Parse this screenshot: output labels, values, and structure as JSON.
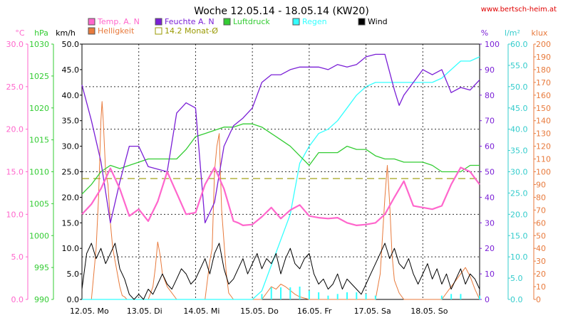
{
  "chart_data": {
    "type": "line",
    "title": "Woche 12.05.14 - 18.05.14 (KW20)",
    "source": "www.bertsch-heim.at",
    "x_labels": [
      "12.05.  Mo",
      "13.05.  Di",
      "14.05.  Mi",
      "15.05.  Do",
      "16.05.  Fr",
      "17.05.  Sa",
      "18.05.  So"
    ],
    "x_range_hours": [
      0,
      168
    ],
    "left_axes": [
      {
        "unit": "°C",
        "color": "#ff66cc",
        "ticks": [
          "30.0",
          "25.0",
          "20.0",
          "15.0",
          "10.0",
          "5.0",
          "0.0"
        ],
        "range": [
          0,
          30
        ]
      },
      {
        "unit": "hPa",
        "color": "#33cc33",
        "ticks": [
          "1030",
          "1025",
          "1020",
          "1015",
          "1010",
          "1005",
          "1000",
          "995",
          "990"
        ],
        "range": [
          990,
          1030
        ]
      },
      {
        "unit": "km/h",
        "color": "#000000",
        "ticks": [
          "50.0",
          "45.0",
          "40.0",
          "35.0",
          "30.0",
          "25.0",
          "20.0",
          "15.0",
          "10.0",
          "5.0",
          "0.0"
        ],
        "range": [
          0,
          50
        ]
      }
    ],
    "right_axes": [
      {
        "unit": "%",
        "color": "#7a1fd6",
        "ticks": [
          "100",
          "90",
          "80",
          "70",
          "60",
          "50",
          "40",
          "30",
          "20",
          "10",
          "0"
        ],
        "range": [
          0,
          100
        ]
      },
      {
        "unit": "l/m²",
        "color": "#33cccc",
        "ticks": [
          "60.0",
          "55.0",
          "50.0",
          "45.0",
          "40.0",
          "35.0",
          "30.0",
          "25.0",
          "20.0",
          "15.0",
          "10.0",
          "5.0",
          "0.0"
        ],
        "range": [
          0,
          60
        ]
      },
      {
        "unit": "klux",
        "color": "#e87a3c",
        "ticks": [
          "200",
          "190",
          "180",
          "170",
          "160",
          "150",
          "140",
          "130",
          "120",
          "110",
          "100",
          "90",
          "80",
          "70",
          "60",
          "50",
          "40",
          "30",
          "20",
          "10",
          "0"
        ],
        "range": [
          0,
          200
        ]
      }
    ],
    "legend": [
      {
        "label": "Temp. A. N",
        "color": "#ff66cc"
      },
      {
        "label": "Feuchte A. N",
        "color": "#7a1fd6"
      },
      {
        "label": "Luftdruck",
        "color": "#33cc33"
      },
      {
        "label": "Regen",
        "color": "#33ffff"
      },
      {
        "label": "Wind",
        "color": "#000000"
      },
      {
        "label": "Helligkeit",
        "color": "#e87a3c"
      },
      {
        "label": "14.2 Monat-Ø",
        "color": "#999900"
      }
    ],
    "reference_line": {
      "label": "14.2 Monat-Ø",
      "value": 14.2,
      "unit": "°C"
    },
    "series": [
      {
        "name": "Temp. A. N",
        "color": "#ff66cc",
        "axis": "°C",
        "hours": [
          0,
          4,
          8,
          12,
          16,
          20,
          24,
          28,
          32,
          36,
          40,
          44,
          48,
          52,
          56,
          60,
          64,
          66,
          68,
          72,
          76,
          80,
          84,
          88,
          92,
          96,
          100,
          104,
          108,
          112,
          116,
          120,
          124,
          128,
          132,
          136,
          140,
          144,
          148,
          152,
          156,
          160,
          164,
          168
        ],
        "values": [
          10.0,
          11.2,
          13.0,
          15.4,
          13.0,
          9.8,
          10.6,
          9.2,
          11.5,
          15.0,
          12.5,
          10.0,
          10.2,
          13.5,
          15.5,
          13.0,
          9.2,
          9.0,
          8.7,
          8.8,
          9.7,
          10.8,
          9.5,
          10.5,
          11.1,
          9.8,
          9.6,
          9.5,
          9.6,
          9.0,
          8.7,
          8.8,
          9.0,
          10.0,
          12.0,
          13.9,
          11.0,
          10.8,
          10.6,
          11.0,
          13.5,
          15.5,
          15.0,
          13.5
        ]
      },
      {
        "name": "Feuchte A. N",
        "color": "#7a1fd6",
        "axis": "%",
        "hours": [
          0,
          4,
          8,
          12,
          16,
          20,
          24,
          28,
          32,
          36,
          40,
          44,
          48,
          52,
          56,
          60,
          64,
          68,
          72,
          76,
          80,
          84,
          88,
          92,
          96,
          100,
          104,
          108,
          112,
          116,
          120,
          124,
          128,
          132,
          134,
          136,
          140,
          144,
          148,
          152,
          156,
          160,
          164,
          168
        ],
        "values": [
          84,
          70,
          54,
          30,
          46,
          60,
          60,
          52,
          51,
          50,
          73,
          77,
          75,
          30,
          38,
          60,
          68,
          71,
          75,
          85,
          88,
          88,
          90,
          91,
          91,
          91,
          90,
          92,
          91,
          92,
          95,
          96,
          96,
          82,
          76,
          80,
          85,
          90,
          88,
          90,
          81,
          83,
          82,
          86
        ]
      },
      {
        "name": "Luftdruck",
        "color": "#33cc33",
        "axis": "hPa",
        "hours": [
          0,
          4,
          8,
          12,
          16,
          20,
          24,
          28,
          32,
          36,
          40,
          44,
          48,
          52,
          56,
          60,
          64,
          68,
          72,
          76,
          80,
          84,
          88,
          92,
          96,
          100,
          104,
          108,
          112,
          116,
          120,
          124,
          128,
          132,
          136,
          140,
          144,
          148,
          152,
          156,
          160,
          164,
          168
        ],
        "values": [
          1006.5,
          1008,
          1010,
          1011,
          1010.5,
          1011,
          1011.5,
          1012,
          1012,
          1012,
          1012,
          1013.5,
          1015.5,
          1016,
          1016.5,
          1017,
          1017,
          1017.5,
          1017.5,
          1017,
          1016,
          1015,
          1014,
          1012.5,
          1011,
          1013,
          1013,
          1013,
          1014,
          1013.5,
          1013.5,
          1012.5,
          1012,
          1012,
          1011.5,
          1011.5,
          1011.5,
          1011,
          1010,
          1010,
          1010,
          1011,
          1011
        ]
      },
      {
        "name": "Regen",
        "color": "#33ffff",
        "axis": "l/m²",
        "hours": [
          0,
          60,
          64,
          68,
          72,
          76,
          80,
          84,
          88,
          92,
          96,
          100,
          104,
          108,
          112,
          116,
          120,
          124,
          128,
          132,
          136,
          140,
          144,
          148,
          152,
          156,
          160,
          164,
          168
        ],
        "values": [
          0,
          0,
          0,
          0,
          0,
          2,
          8,
          14,
          20,
          32,
          36,
          39,
          40,
          42,
          45,
          48,
          50,
          51,
          51,
          51,
          51,
          51,
          51,
          51,
          52,
          54,
          56,
          56,
          57
        ]
      },
      {
        "name": "Wind",
        "color": "#000000",
        "axis": "km/h",
        "hours": [
          0,
          2,
          4,
          6,
          8,
          10,
          12,
          14,
          16,
          18,
          20,
          22,
          24,
          26,
          28,
          30,
          32,
          34,
          36,
          38,
          40,
          42,
          44,
          46,
          48,
          50,
          52,
          54,
          56,
          58,
          60,
          62,
          64,
          66,
          68,
          70,
          72,
          74,
          76,
          78,
          80,
          82,
          84,
          86,
          88,
          90,
          92,
          94,
          96,
          98,
          100,
          102,
          104,
          106,
          108,
          110,
          112,
          114,
          116,
          118,
          120,
          122,
          124,
          126,
          128,
          130,
          132,
          134,
          136,
          138,
          140,
          142,
          144,
          146,
          148,
          150,
          152,
          154,
          156,
          158,
          160,
          162,
          164,
          166,
          168
        ],
        "values": [
          2,
          9,
          11,
          8,
          10,
          7,
          9,
          11,
          6,
          4,
          1,
          0,
          1,
          0,
          2,
          1,
          3,
          5,
          3,
          2,
          4,
          6,
          5,
          3,
          4,
          6,
          8,
          5,
          9,
          11,
          6,
          3,
          4,
          6,
          8,
          5,
          7,
          9,
          6,
          8,
          7,
          9,
          5,
          8,
          10,
          7,
          6,
          8,
          9,
          5,
          3,
          4,
          2,
          3,
          5,
          2,
          4,
          3,
          2,
          1,
          3,
          5,
          7,
          9,
          11,
          8,
          10,
          7,
          6,
          8,
          5,
          3,
          5,
          7,
          4,
          6,
          3,
          5,
          2,
          4,
          6,
          3,
          5,
          4,
          2
        ]
      },
      {
        "name": "Helligkeit",
        "color": "#e87a3c",
        "axis": "klux",
        "hours": [
          0,
          4,
          6,
          7,
          8,
          8.5,
          9,
          10,
          11,
          12,
          13,
          14,
          15,
          16,
          17,
          18,
          19,
          20,
          24,
          28,
          30,
          31,
          32,
          33,
          34,
          36,
          40,
          44,
          48,
          52,
          54,
          55,
          56,
          57,
          58,
          59,
          60,
          61,
          62,
          64,
          68,
          72,
          76,
          78,
          80,
          82,
          84,
          86,
          88,
          90,
          92,
          96,
          100,
          102,
          104,
          106,
          108,
          110,
          112,
          116,
          120,
          124,
          126,
          127,
          128,
          129,
          130,
          131,
          132,
          134,
          136,
          140,
          144,
          148,
          150,
          152,
          154,
          156,
          158,
          160,
          162,
          164,
          166,
          168
        ],
        "values": [
          0,
          0,
          40,
          80,
          140,
          155,
          140,
          100,
          90,
          60,
          40,
          30,
          20,
          10,
          3,
          2,
          0,
          0,
          0,
          0,
          10,
          25,
          45,
          35,
          20,
          10,
          0,
          0,
          0,
          0,
          30,
          40,
          100,
          120,
          130,
          70,
          45,
          20,
          5,
          0,
          0,
          0,
          0,
          5,
          10,
          8,
          12,
          10,
          7,
          4,
          2,
          0,
          0,
          0,
          0,
          0,
          0,
          0,
          0,
          0,
          0,
          0,
          20,
          50,
          80,
          105,
          75,
          35,
          15,
          5,
          0,
          0,
          0,
          0,
          0,
          0,
          5,
          10,
          15,
          20,
          25,
          18,
          8,
          0
        ]
      }
    ]
  }
}
